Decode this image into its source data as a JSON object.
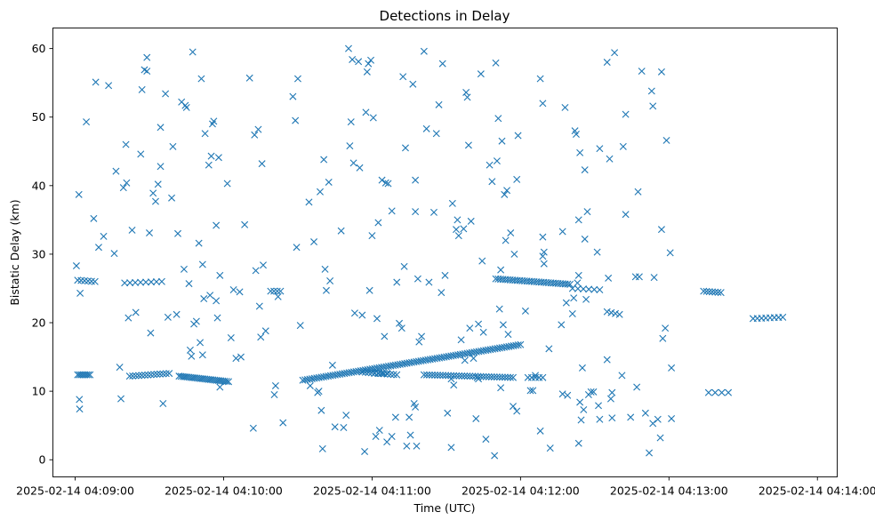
{
  "chart_data": {
    "type": "scatter",
    "title": "Detections in Delay",
    "xlabel": "Time (UTC)",
    "ylabel": "Bistatic Delay (km)",
    "marker": "x",
    "color": "#1f77b4",
    "grid": false,
    "xlim_seconds": [
      -9,
      308
    ],
    "ylim": [
      -2.5,
      63
    ],
    "x_ticks": [
      {
        "t": 0,
        "label": "2025-02-14 04:09:00"
      },
      {
        "t": 60,
        "label": "2025-02-14 04:10:00"
      },
      {
        "t": 120,
        "label": "2025-02-14 04:11:00"
      },
      {
        "t": 180,
        "label": "2025-02-14 04:12:00"
      },
      {
        "t": 240,
        "label": "2025-02-14 04:13:00"
      },
      {
        "t": 300,
        "label": "2025-02-14 04:14:00"
      }
    ],
    "y_ticks": [
      {
        "v": 0,
        "label": "0"
      },
      {
        "v": 10,
        "label": "10"
      },
      {
        "v": 20,
        "label": "20"
      },
      {
        "v": 30,
        "label": "30"
      },
      {
        "v": 40,
        "label": "40"
      },
      {
        "v": 50,
        "label": "50"
      },
      {
        "v": 60,
        "label": "60"
      }
    ],
    "x_unit": "seconds since 2025-02-14 04:09:00 UTC",
    "tracks": [
      {
        "name": "track-1-low",
        "t_start": 1,
        "t_end": 6,
        "y_start": 12.4,
        "y_end": 12.4,
        "count": 8
      },
      {
        "name": "track-2-low",
        "t_start": 22,
        "t_end": 38,
        "y_start": 12.2,
        "y_end": 12.6,
        "count": 14
      },
      {
        "name": "track-3-low",
        "t_start": 42,
        "t_end": 62,
        "y_start": 12.2,
        "y_end": 11.4,
        "count": 26
      },
      {
        "name": "track-4-rising",
        "t_start": 92,
        "t_end": 180,
        "y_start": 11.6,
        "y_end": 16.8,
        "count": 95
      },
      {
        "name": "track-5-low",
        "t_start": 116,
        "t_end": 130,
        "y_start": 12.8,
        "y_end": 12.4,
        "count": 12
      },
      {
        "name": "track-6-low",
        "t_start": 141,
        "t_end": 177,
        "y_start": 12.4,
        "y_end": 12.0,
        "count": 34
      },
      {
        "name": "track-7-low",
        "t_start": 183,
        "t_end": 189,
        "y_start": 12.0,
        "y_end": 12.0,
        "count": 5
      },
      {
        "name": "track-8-mid",
        "t_start": 170,
        "t_end": 200,
        "y_start": 26.4,
        "y_end": 25.6,
        "count": 32
      },
      {
        "name": "track-9-mid",
        "t_start": 1,
        "t_end": 8,
        "y_start": 26.2,
        "y_end": 26.0,
        "count": 6
      },
      {
        "name": "track-10-mid",
        "t_start": 20,
        "t_end": 35,
        "y_start": 25.8,
        "y_end": 26.0,
        "count": 8
      },
      {
        "name": "track-11-mid",
        "t_start": 79,
        "t_end": 83,
        "y_start": 24.6,
        "y_end": 24.6,
        "count": 4
      },
      {
        "name": "track-12-mid",
        "t_start": 201,
        "t_end": 212,
        "y_start": 25.0,
        "y_end": 24.8,
        "count": 6
      },
      {
        "name": "track-13-mid",
        "t_start": 254,
        "t_end": 261,
        "y_start": 24.6,
        "y_end": 24.4,
        "count": 7
      },
      {
        "name": "track-14-mid",
        "t_start": 274,
        "t_end": 286,
        "y_start": 20.6,
        "y_end": 20.8,
        "count": 8
      },
      {
        "name": "track-15-mid",
        "t_start": 215,
        "t_end": 220,
        "y_start": 21.6,
        "y_end": 21.2,
        "count": 4
      },
      {
        "name": "track-16-low",
        "t_start": 256,
        "t_end": 264,
        "y_start": 9.8,
        "y_end": 9.8,
        "count": 4
      },
      {
        "name": "track-17-low",
        "t_start": 121,
        "t_end": 126,
        "y_start": 12.6,
        "y_end": 12.6,
        "count": 4
      }
    ],
    "clutter": [
      [
        0.5,
        28.3
      ],
      [
        1.5,
        38.7
      ],
      [
        2,
        24.3
      ],
      [
        1.7,
        8.8
      ],
      [
        1.8,
        7.4
      ],
      [
        4.5,
        49.3
      ],
      [
        7.5,
        35.2
      ],
      [
        8.3,
        55.1
      ],
      [
        9.5,
        31
      ],
      [
        11.5,
        32.6
      ],
      [
        13.5,
        54.6
      ],
      [
        15.8,
        30.1
      ],
      [
        16.5,
        42.1
      ],
      [
        18,
        13.5
      ],
      [
        18.5,
        8.9
      ],
      [
        19.5,
        39.7
      ],
      [
        20.8,
        40.4
      ],
      [
        20.5,
        46
      ],
      [
        21.5,
        20.7
      ],
      [
        23,
        33.5
      ],
      [
        24.5,
        21.5
      ],
      [
        26.5,
        44.6
      ],
      [
        27,
        54
      ],
      [
        28,
        56.9
      ],
      [
        29,
        56.7
      ],
      [
        29,
        58.7
      ],
      [
        30,
        33.1
      ],
      [
        30.5,
        18.5
      ],
      [
        31.5,
        38.9
      ],
      [
        32.5,
        37.7
      ],
      [
        33.5,
        40.2
      ],
      [
        34.5,
        42.8
      ],
      [
        34.5,
        48.5
      ],
      [
        35.5,
        8.2
      ],
      [
        36.5,
        53.4
      ],
      [
        37.5,
        20.8
      ],
      [
        39,
        38.2
      ],
      [
        39.5,
        45.7
      ],
      [
        41,
        21.2
      ],
      [
        41.5,
        33
      ],
      [
        43,
        52.2
      ],
      [
        44,
        27.8
      ],
      [
        44.5,
        51.7
      ],
      [
        45,
        51.4
      ],
      [
        46,
        25.7
      ],
      [
        46.5,
        16
      ],
      [
        47,
        15.1
      ],
      [
        47.5,
        59.5
      ],
      [
        48,
        19.8
      ],
      [
        49,
        20.2
      ],
      [
        50,
        31.6
      ],
      [
        50.5,
        17.1
      ],
      [
        51,
        55.6
      ],
      [
        51.5,
        28.5
      ],
      [
        51.5,
        15.3
      ],
      [
        52,
        23.5
      ],
      [
        52.5,
        47.6
      ],
      [
        54,
        43
      ],
      [
        54.5,
        24
      ],
      [
        55,
        44.3
      ],
      [
        55.5,
        49
      ],
      [
        56,
        49.4
      ],
      [
        57,
        23.2
      ],
      [
        57,
        34.2
      ],
      [
        57.5,
        20.7
      ],
      [
        58,
        44.1
      ],
      [
        58.5,
        26.9
      ],
      [
        58.5,
        10.6
      ],
      [
        61.5,
        40.3
      ],
      [
        63,
        17.8
      ],
      [
        64,
        24.8
      ],
      [
        65,
        14.8
      ],
      [
        66.5,
        24.5
      ],
      [
        67,
        15
      ],
      [
        68.5,
        34.3
      ],
      [
        70.5,
        55.7
      ],
      [
        72,
        4.6
      ],
      [
        72.5,
        47.4
      ],
      [
        73,
        27.6
      ],
      [
        74,
        48.2
      ],
      [
        74.5,
        22.4
      ],
      [
        75,
        17.9
      ],
      [
        75.5,
        43.2
      ],
      [
        76,
        28.4
      ],
      [
        77,
        18.8
      ],
      [
        80.5,
        9.5
      ],
      [
        81,
        10.8
      ],
      [
        82,
        23.8
      ],
      [
        84,
        5.4
      ],
      [
        88,
        53
      ],
      [
        89,
        49.5
      ],
      [
        89.5,
        31
      ],
      [
        90,
        55.6
      ],
      [
        91,
        19.6
      ],
      [
        94.5,
        37.6
      ],
      [
        95,
        10.8
      ],
      [
        96.5,
        31.8
      ],
      [
        98,
        9.8
      ],
      [
        98.5,
        10
      ],
      [
        99,
        39.1
      ],
      [
        99.5,
        7.2
      ],
      [
        100,
        1.6
      ],
      [
        100.5,
        43.8
      ],
      [
        101,
        27.8
      ],
      [
        101.5,
        24.7
      ],
      [
        102.5,
        40.5
      ],
      [
        103,
        26.1
      ],
      [
        104,
        13.8
      ],
      [
        105,
        4.8
      ],
      [
        107.5,
        33.4
      ],
      [
        108.5,
        4.7
      ],
      [
        109.5,
        6.5
      ],
      [
        110.5,
        60
      ],
      [
        111,
        45.8
      ],
      [
        111.5,
        49.3
      ],
      [
        112,
        58.4
      ],
      [
        112.5,
        43.3
      ],
      [
        113,
        21.4
      ],
      [
        114.5,
        58.1
      ],
      [
        115,
        42.6
      ],
      [
        116,
        21.1
      ],
      [
        117,
        1.2
      ],
      [
        117.5,
        50.7
      ],
      [
        118,
        56.6
      ],
      [
        118.5,
        57.8
      ],
      [
        119,
        24.7
      ],
      [
        119.5,
        58.3
      ],
      [
        120,
        32.7
      ],
      [
        120.5,
        49.9
      ],
      [
        121.5,
        3.4
      ],
      [
        122,
        20.6
      ],
      [
        122.5,
        34.6
      ],
      [
        123,
        4.3
      ],
      [
        124,
        40.8
      ],
      [
        125,
        18
      ],
      [
        125.5,
        40.4
      ],
      [
        126,
        2.6
      ],
      [
        126.5,
        40.3
      ],
      [
        128,
        3.4
      ],
      [
        128,
        36.3
      ],
      [
        129.5,
        6.2
      ],
      [
        130,
        25.9
      ],
      [
        131,
        19.9
      ],
      [
        132,
        19.2
      ],
      [
        132.5,
        55.9
      ],
      [
        133,
        28.2
      ],
      [
        133.5,
        45.5
      ],
      [
        134,
        2
      ],
      [
        135,
        6.2
      ],
      [
        135.5,
        3.6
      ],
      [
        136.5,
        54.8
      ],
      [
        137,
        8.2
      ],
      [
        137.5,
        7.7
      ],
      [
        137.5,
        40.8
      ],
      [
        137.5,
        36.2
      ],
      [
        138,
        2
      ],
      [
        138.5,
        26.4
      ],
      [
        139,
        17.2
      ],
      [
        140,
        18
      ],
      [
        141,
        59.6
      ],
      [
        142,
        48.3
      ],
      [
        143,
        25.9
      ],
      [
        145,
        36.1
      ],
      [
        146,
        47.6
      ],
      [
        147,
        51.8
      ],
      [
        148,
        24.4
      ],
      [
        148.5,
        57.8
      ],
      [
        149.5,
        26.9
      ],
      [
        150.5,
        6.8
      ],
      [
        152,
        11.8
      ],
      [
        152,
        1.8
      ],
      [
        152.5,
        37.4
      ],
      [
        153,
        10.9
      ],
      [
        154,
        33.6
      ],
      [
        154.5,
        35
      ],
      [
        155,
        32.7
      ],
      [
        156,
        17.5
      ],
      [
        157,
        33.7
      ],
      [
        157.5,
        14.5
      ],
      [
        158,
        53.6
      ],
      [
        158.5,
        52.9
      ],
      [
        159,
        45.9
      ],
      [
        159.5,
        19.2
      ],
      [
        160,
        34.8
      ],
      [
        161,
        14.8
      ],
      [
        162,
        6
      ],
      [
        162.5,
        12
      ],
      [
        163,
        11.8
      ],
      [
        163,
        19.8
      ],
      [
        164,
        56.3
      ],
      [
        164.5,
        29
      ],
      [
        165,
        18.6
      ],
      [
        166,
        3
      ],
      [
        167.5,
        43
      ],
      [
        168.5,
        40.6
      ],
      [
        169.5,
        0.6
      ],
      [
        170,
        57.9
      ],
      [
        170.5,
        43.6
      ],
      [
        171,
        49.8
      ],
      [
        171.5,
        22
      ],
      [
        172,
        10.5
      ],
      [
        172,
        27.7
      ],
      [
        172.5,
        46.5
      ],
      [
        173,
        19.7
      ],
      [
        173.5,
        38.7
      ],
      [
        174,
        32
      ],
      [
        174.5,
        39.3
      ],
      [
        175,
        18.3
      ],
      [
        176,
        33.1
      ],
      [
        177,
        7.8
      ],
      [
        177.5,
        30
      ],
      [
        178.5,
        40.9
      ],
      [
        178.5,
        7.1
      ],
      [
        179,
        47.3
      ],
      [
        182,
        21.7
      ],
      [
        184,
        10.1
      ],
      [
        185,
        10.1
      ],
      [
        186,
        12.3
      ],
      [
        188,
        55.6
      ],
      [
        188,
        4.2
      ],
      [
        189,
        32.5
      ],
      [
        189,
        52
      ],
      [
        189.5,
        30.3
      ],
      [
        189,
        29.7
      ],
      [
        189.5,
        28.6
      ],
      [
        191.5,
        16.2
      ],
      [
        192,
        1.7
      ],
      [
        196.5,
        19.7
      ],
      [
        197,
        9.6
      ],
      [
        197,
        33.3
      ],
      [
        198,
        51.4
      ],
      [
        198.5,
        22.9
      ],
      [
        199,
        9.4
      ],
      [
        201,
        21.3
      ],
      [
        201.5,
        23.6
      ],
      [
        202,
        48
      ],
      [
        202.5,
        47.5
      ],
      [
        203,
        25.8
      ],
      [
        203.5,
        2.4
      ],
      [
        203.5,
        26.9
      ],
      [
        203.5,
        35
      ],
      [
        204,
        44.8
      ],
      [
        204,
        8.4
      ],
      [
        204.5,
        5.8
      ],
      [
        205,
        13.4
      ],
      [
        205.5,
        7.3
      ],
      [
        206,
        32.2
      ],
      [
        206,
        42.3
      ],
      [
        206.5,
        23.4
      ],
      [
        207,
        36.2
      ],
      [
        207.5,
        9.5
      ],
      [
        208.5,
        9.9
      ],
      [
        209.5,
        9.9
      ],
      [
        211,
        30.3
      ],
      [
        211.5,
        7.9
      ],
      [
        212,
        45.4
      ],
      [
        212,
        5.9
      ],
      [
        215,
        58
      ],
      [
        215,
        14.6
      ],
      [
        215.5,
        26.5
      ],
      [
        216,
        43.9
      ],
      [
        216.5,
        8.9
      ],
      [
        217,
        9.8
      ],
      [
        217,
        6.1
      ],
      [
        218,
        59.4
      ],
      [
        221,
        12.3
      ],
      [
        221.5,
        45.7
      ],
      [
        222.5,
        50.4
      ],
      [
        222.5,
        35.8
      ],
      [
        224.5,
        6.2
      ],
      [
        226.5,
        26.7
      ],
      [
        227,
        10.6
      ],
      [
        227.5,
        39.1
      ],
      [
        228,
        26.7
      ],
      [
        229,
        56.7
      ],
      [
        230.5,
        6.8
      ],
      [
        232,
        1
      ],
      [
        233,
        53.8
      ],
      [
        233.5,
        51.6
      ],
      [
        233.5,
        5.3
      ],
      [
        234,
        26.6
      ],
      [
        235.5,
        5.9
      ],
      [
        236.5,
        3.2
      ],
      [
        237,
        56.6
      ],
      [
        237,
        33.6
      ],
      [
        237.5,
        17.7
      ],
      [
        238.5,
        19.2
      ],
      [
        239,
        46.6
      ],
      [
        240.5,
        30.2
      ],
      [
        241,
        6
      ],
      [
        241,
        13.4
      ]
    ]
  }
}
